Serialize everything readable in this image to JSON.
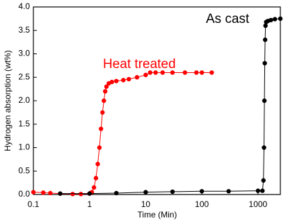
{
  "chart_data": {
    "type": "scatter",
    "x_label": "Time (Min)",
    "y_label": "Hydrogen absorption (wt%)",
    "xlog": true,
    "xlim": [
      0.1,
      2500
    ],
    "ylim": [
      0,
      4.0
    ],
    "xticks": [
      0.1,
      1,
      10,
      100,
      1000
    ],
    "yticks": [
      {
        "value": 0,
        "label": "0.0"
      },
      {
        "value": 0.5,
        "label": "0.5"
      },
      {
        "value": 1,
        "label": "1.0"
      },
      {
        "value": 1.5,
        "label": "1.5"
      },
      {
        "value": 2,
        "label": "2.0"
      },
      {
        "value": 2.5,
        "label": "2.5"
      },
      {
        "value": 3,
        "label": "3.0"
      },
      {
        "value": 3.5,
        "label": "3.5"
      },
      {
        "value": 4,
        "label": "4.0"
      }
    ],
    "series": [
      {
        "name": "Heat treated",
        "color": "#ff0000",
        "x": [
          0.1,
          0.15,
          0.2,
          0.3,
          0.5,
          0.7,
          1.0,
          1.1,
          1.2,
          1.3,
          1.4,
          1.5,
          1.6,
          1.7,
          1.8,
          1.9,
          2.0,
          2.2,
          2.5,
          3,
          4,
          5,
          7,
          10,
          12,
          15,
          20,
          30,
          50,
          80,
          100,
          150
        ],
        "values": [
          0.05,
          0.04,
          0.03,
          0.02,
          0.01,
          0.01,
          0.02,
          0.05,
          0.15,
          0.35,
          0.65,
          1.0,
          1.4,
          1.75,
          2.0,
          2.2,
          2.3,
          2.37,
          2.4,
          2.42,
          2.44,
          2.46,
          2.5,
          2.55,
          2.6,
          2.6,
          2.6,
          2.6,
          2.6,
          2.6,
          2.6,
          2.6
        ]
      },
      {
        "name": "As cast",
        "color": "#000000",
        "x": [
          0.3,
          1,
          3,
          10,
          30,
          100,
          300,
          1000,
          1200,
          1250,
          1280,
          1300,
          1320,
          1340,
          1360,
          1400,
          1500,
          1700,
          2000,
          2500
        ],
        "values": [
          0.02,
          0.02,
          0.03,
          0.05,
          0.06,
          0.07,
          0.07,
          0.08,
          0.08,
          0.3,
          1.0,
          2.0,
          2.8,
          3.3,
          3.6,
          3.68,
          3.7,
          3.72,
          3.74,
          3.75
        ]
      }
    ]
  }
}
